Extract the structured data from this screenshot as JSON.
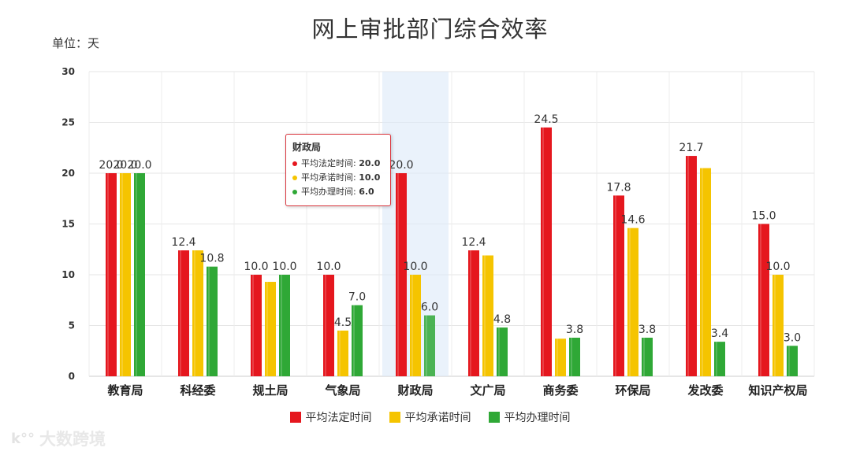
{
  "title": "网上审批部门综合效率",
  "unit": "单位：天",
  "tooltip": {
    "category": "财政局",
    "rows": [
      {
        "label": "平均法定时间: ",
        "value": "20.0",
        "color": "#e5171e"
      },
      {
        "label": "平均承诺时间: ",
        "value": "10.0",
        "color": "#f5c400"
      },
      {
        "label": "平均办理时间: ",
        "value": "6.0",
        "color": "#2fa836"
      }
    ]
  },
  "watermark": {
    "logo": "k°°",
    "text": "大数跨境"
  },
  "chart_data": {
    "type": "bar",
    "title": "网上审批部门综合效率",
    "ylabel": "单位：天",
    "ylim": [
      0,
      30
    ],
    "yticks": [
      0,
      5,
      10,
      15,
      20,
      25,
      30
    ],
    "grid": true,
    "legend_position": "bottom",
    "highlighted_category": "财政局",
    "categories": [
      "教育局",
      "科经委",
      "规土局",
      "气象局",
      "财政局",
      "文广局",
      "商务委",
      "环保局",
      "发改委",
      "知识产权局"
    ],
    "series": [
      {
        "name": "平均法定时间",
        "color": "#e5171e",
        "values": [
          20.0,
          12.4,
          10.0,
          10.0,
          20.0,
          12.4,
          24.5,
          17.8,
          21.7,
          15.0
        ],
        "labels": [
          "20.0",
          "12.4",
          "10.0",
          "10.0",
          "20.0",
          "12.4",
          "24.5",
          "17.8",
          "21.7",
          "15.0"
        ]
      },
      {
        "name": "平均承诺时间",
        "color": "#f5c400",
        "values": [
          20.0,
          12.4,
          9.3,
          4.5,
          10.0,
          11.9,
          3.7,
          14.6,
          20.5,
          10.0
        ],
        "labels": [
          "20.0",
          "",
          "",
          "4.5",
          "10.0",
          "",
          "",
          "14.6",
          "",
          "10.0"
        ]
      },
      {
        "name": "平均办理时间",
        "color": "#2fa836",
        "values": [
          20.0,
          10.8,
          10.0,
          7.0,
          6.0,
          4.8,
          3.8,
          3.8,
          3.4,
          3.0
        ],
        "labels": [
          "20.0",
          "10.8",
          "10.0",
          "7.0",
          "6.0",
          "4.8",
          "3.8",
          "3.8",
          "3.4",
          "3.0"
        ]
      }
    ]
  }
}
